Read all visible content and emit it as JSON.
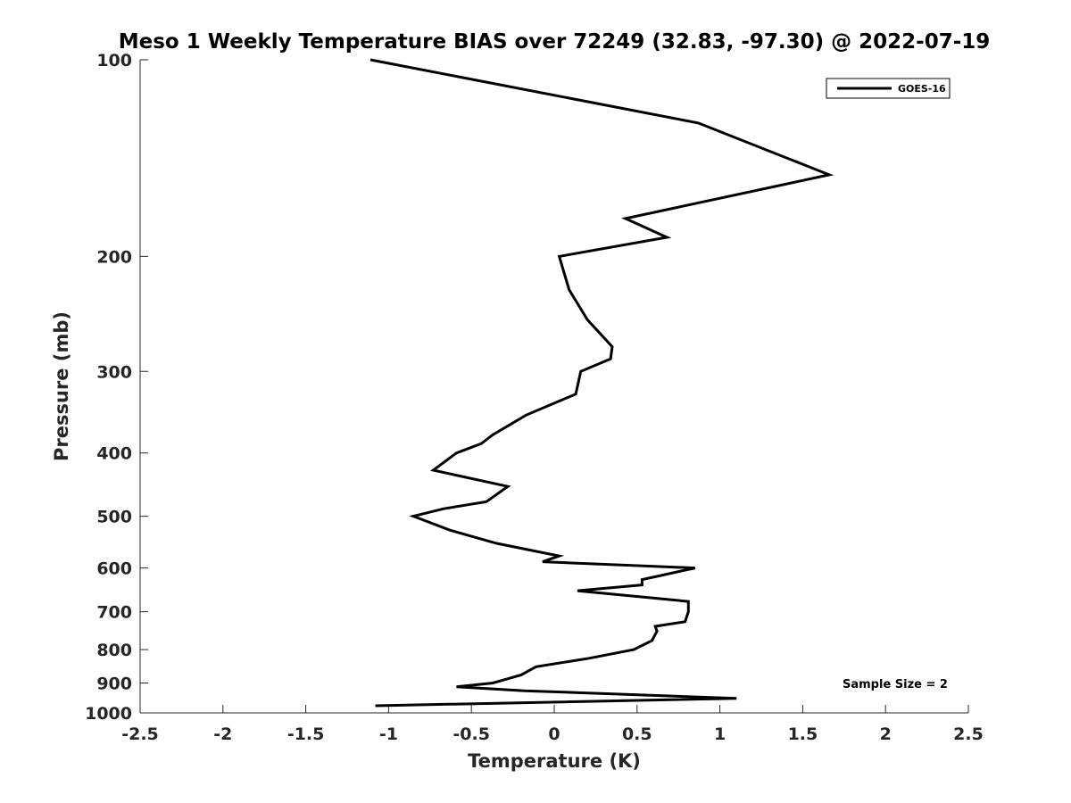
{
  "chart_data": {
    "type": "line",
    "title": "Meso 1 Weekly Temperature BIAS over 72249 (32.83, -97.30) @ 2022-07-19",
    "xlabel": "Temperature (K)",
    "ylabel": "Pressure (mb)",
    "xlim": [
      -2.5,
      2.5
    ],
    "ylim": [
      100,
      1000
    ],
    "y_scale": "log",
    "y_reversed": true,
    "x_ticks": [
      -2.5,
      -2,
      -1.5,
      -1,
      -0.5,
      0,
      0.5,
      1,
      1.5,
      2,
      2.5
    ],
    "x_tick_labels": [
      "-2.5",
      "-2",
      "-1.5",
      "-1",
      "-0.5",
      "0",
      "0.5",
      "1",
      "1.5",
      "2",
      "2.5"
    ],
    "y_ticks": [
      100,
      200,
      300,
      400,
      500,
      600,
      700,
      800,
      900,
      1000
    ],
    "y_tick_labels": [
      "100",
      "200",
      "300",
      "400",
      "500",
      "600",
      "700",
      "800",
      "900",
      "1000"
    ],
    "grid": false,
    "legend_position": "top-right",
    "line_color": "#000000",
    "series": [
      {
        "name": "GOES-16",
        "points": [
          {
            "x": -1.11,
            "y": 100
          },
          {
            "x": 0.87,
            "y": 125
          },
          {
            "x": 1.66,
            "y": 150
          },
          {
            "x": 0.43,
            "y": 175
          },
          {
            "x": 0.68,
            "y": 187
          },
          {
            "x": 0.03,
            "y": 200
          },
          {
            "x": 0.09,
            "y": 225
          },
          {
            "x": 0.2,
            "y": 250
          },
          {
            "x": 0.35,
            "y": 275
          },
          {
            "x": 0.34,
            "y": 287
          },
          {
            "x": 0.16,
            "y": 300
          },
          {
            "x": 0.13,
            "y": 325
          },
          {
            "x": -0.17,
            "y": 350
          },
          {
            "x": -0.37,
            "y": 375
          },
          {
            "x": -0.44,
            "y": 387
          },
          {
            "x": -0.59,
            "y": 400
          },
          {
            "x": -0.73,
            "y": 425
          },
          {
            "x": -0.28,
            "y": 450
          },
          {
            "x": -0.41,
            "y": 475
          },
          {
            "x": -0.67,
            "y": 487
          },
          {
            "x": -0.85,
            "y": 500
          },
          {
            "x": -0.63,
            "y": 525
          },
          {
            "x": -0.35,
            "y": 550
          },
          {
            "x": 0.03,
            "y": 575
          },
          {
            "x": -0.07,
            "y": 587
          },
          {
            "x": 0.85,
            "y": 600
          },
          {
            "x": 0.53,
            "y": 625
          },
          {
            "x": 0.53,
            "y": 637
          },
          {
            "x": 0.14,
            "y": 650
          },
          {
            "x": 0.81,
            "y": 675
          },
          {
            "x": 0.81,
            "y": 700
          },
          {
            "x": 0.79,
            "y": 725
          },
          {
            "x": 0.61,
            "y": 737
          },
          {
            "x": 0.62,
            "y": 750
          },
          {
            "x": 0.59,
            "y": 775
          },
          {
            "x": 0.48,
            "y": 800
          },
          {
            "x": 0.21,
            "y": 825
          },
          {
            "x": -0.11,
            "y": 850
          },
          {
            "x": -0.2,
            "y": 875
          },
          {
            "x": -0.37,
            "y": 900
          },
          {
            "x": -0.59,
            "y": 912
          },
          {
            "x": -0.18,
            "y": 925
          },
          {
            "x": 1.1,
            "y": 950
          },
          {
            "x": -1.08,
            "y": 975
          }
        ]
      }
    ],
    "annotations": [
      {
        "text": "Sample Size = 2",
        "position": "bottom-right"
      }
    ]
  }
}
